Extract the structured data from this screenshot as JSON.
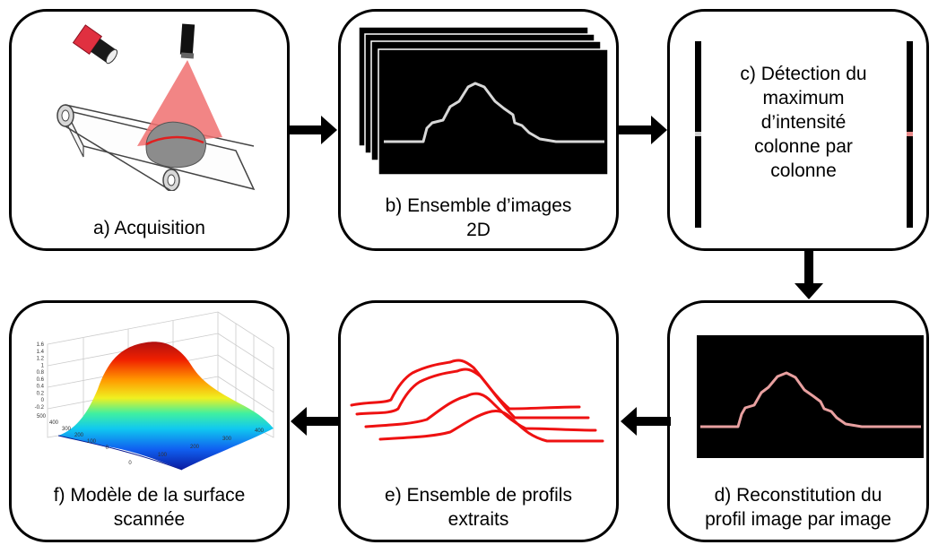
{
  "steps": {
    "a": {
      "label": "a) Acquisition"
    },
    "b": {
      "label": "b) Ensemble d’images 2D"
    },
    "c": {
      "label": "c) Détection du maximum d’intensité colonne par colonne"
    },
    "d": {
      "label": "d) Reconstitution du profil image par image"
    },
    "e": {
      "label": "e) Ensemble de profils extraits"
    },
    "f": {
      "label": "f) Modèle de la surface scannée"
    }
  },
  "surface_plot": {
    "z_ticks": [
      "1.6",
      "1.4",
      "1.2",
      "1",
      "0.8",
      "0.6",
      "0.4",
      "0.2",
      "0",
      "-0.2"
    ],
    "y_ticks": [
      "500",
      "400",
      "300",
      "200",
      "100",
      "0"
    ],
    "x_ticks": [
      "0",
      "100",
      "200",
      "300",
      "400"
    ]
  },
  "colors": {
    "laser": "#f07070",
    "object": "#8c8c8c",
    "profile_red": "#ee1111",
    "profile_glow": "#e8a0a0",
    "camera": "#e03040"
  }
}
